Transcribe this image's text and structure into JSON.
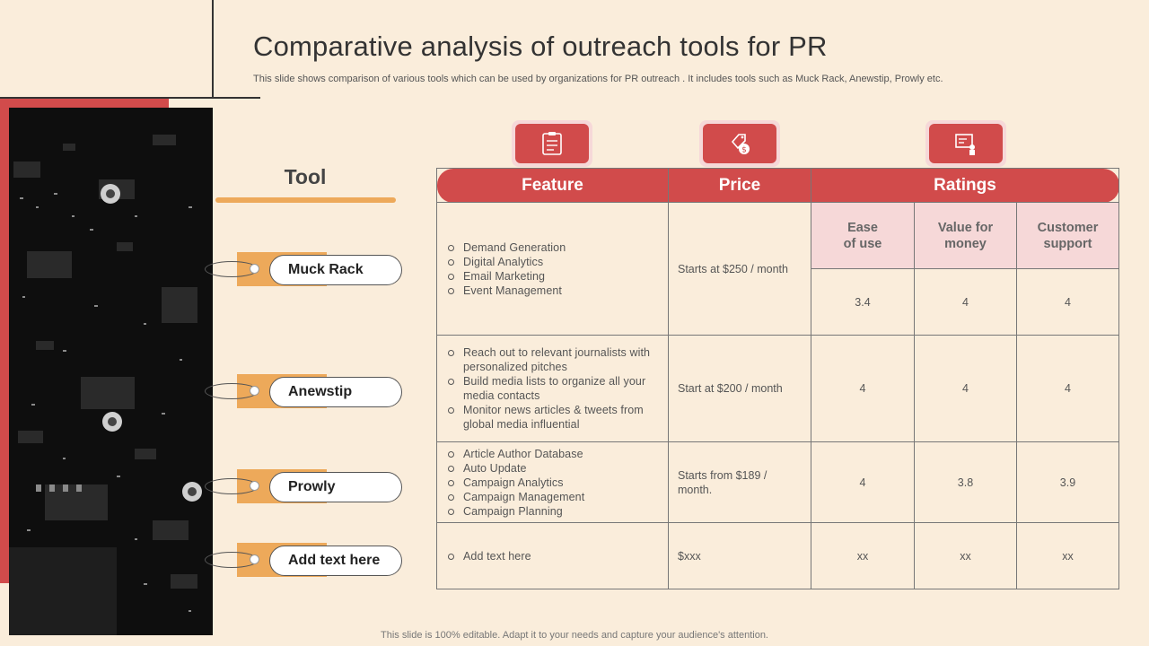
{
  "title": "Comparative analysis of outreach tools for PR",
  "subtitle": "This slide shows comparison of various tools which can be used by organizations for PR outreach . It includes tools such as Muck Rack, Anewstip, Prowly etc.",
  "footer": "This slide is 100% editable. Adapt it to your needs and capture your audience's attention.",
  "tool_heading": "Tool",
  "tools": [
    "Muck Rack",
    "Anewstip",
    "Prowly",
    "Add text here"
  ],
  "icons": [
    "checklist-icon",
    "price-tag-icon",
    "rating-board-icon"
  ],
  "table": {
    "headers": [
      "Feature",
      "Price",
      "Ratings"
    ],
    "rating_headers": [
      "Ease\nof use",
      "Value for\nmoney",
      "Customer\nsupport"
    ],
    "rows": [
      {
        "features": [
          "Demand Generation",
          "Digital Analytics",
          "Email Marketing",
          "Event Management"
        ],
        "price": "Starts at $250  / month",
        "ratings": [
          "3.4",
          "4",
          "4"
        ]
      },
      {
        "features": [
          "Reach out to relevant  journalists with personalized pitches",
          "Build media lists to organize  all your media contacts",
          "Monitor news articles & tweets from global media influential"
        ],
        "price": "Start at $200  / month",
        "ratings": [
          "4",
          "4",
          "4"
        ]
      },
      {
        "features": [
          "Article Author Database",
          "Auto Update",
          "Campaign  Analytics",
          "Campaign Management",
          "Campaign  Planning"
        ],
        "price": "Starts from  $189  / month.",
        "ratings": [
          "4",
          "3.8",
          "3.9"
        ]
      },
      {
        "features": [
          "Add text here"
        ],
        "price": "$xxx",
        "ratings": [
          "xx",
          "xx",
          "xx"
        ]
      }
    ]
  },
  "colors": {
    "background": "#faeddb",
    "accent_red": "#d14b4b",
    "accent_orange": "#eda95a",
    "pink": "#f6d8d8"
  }
}
